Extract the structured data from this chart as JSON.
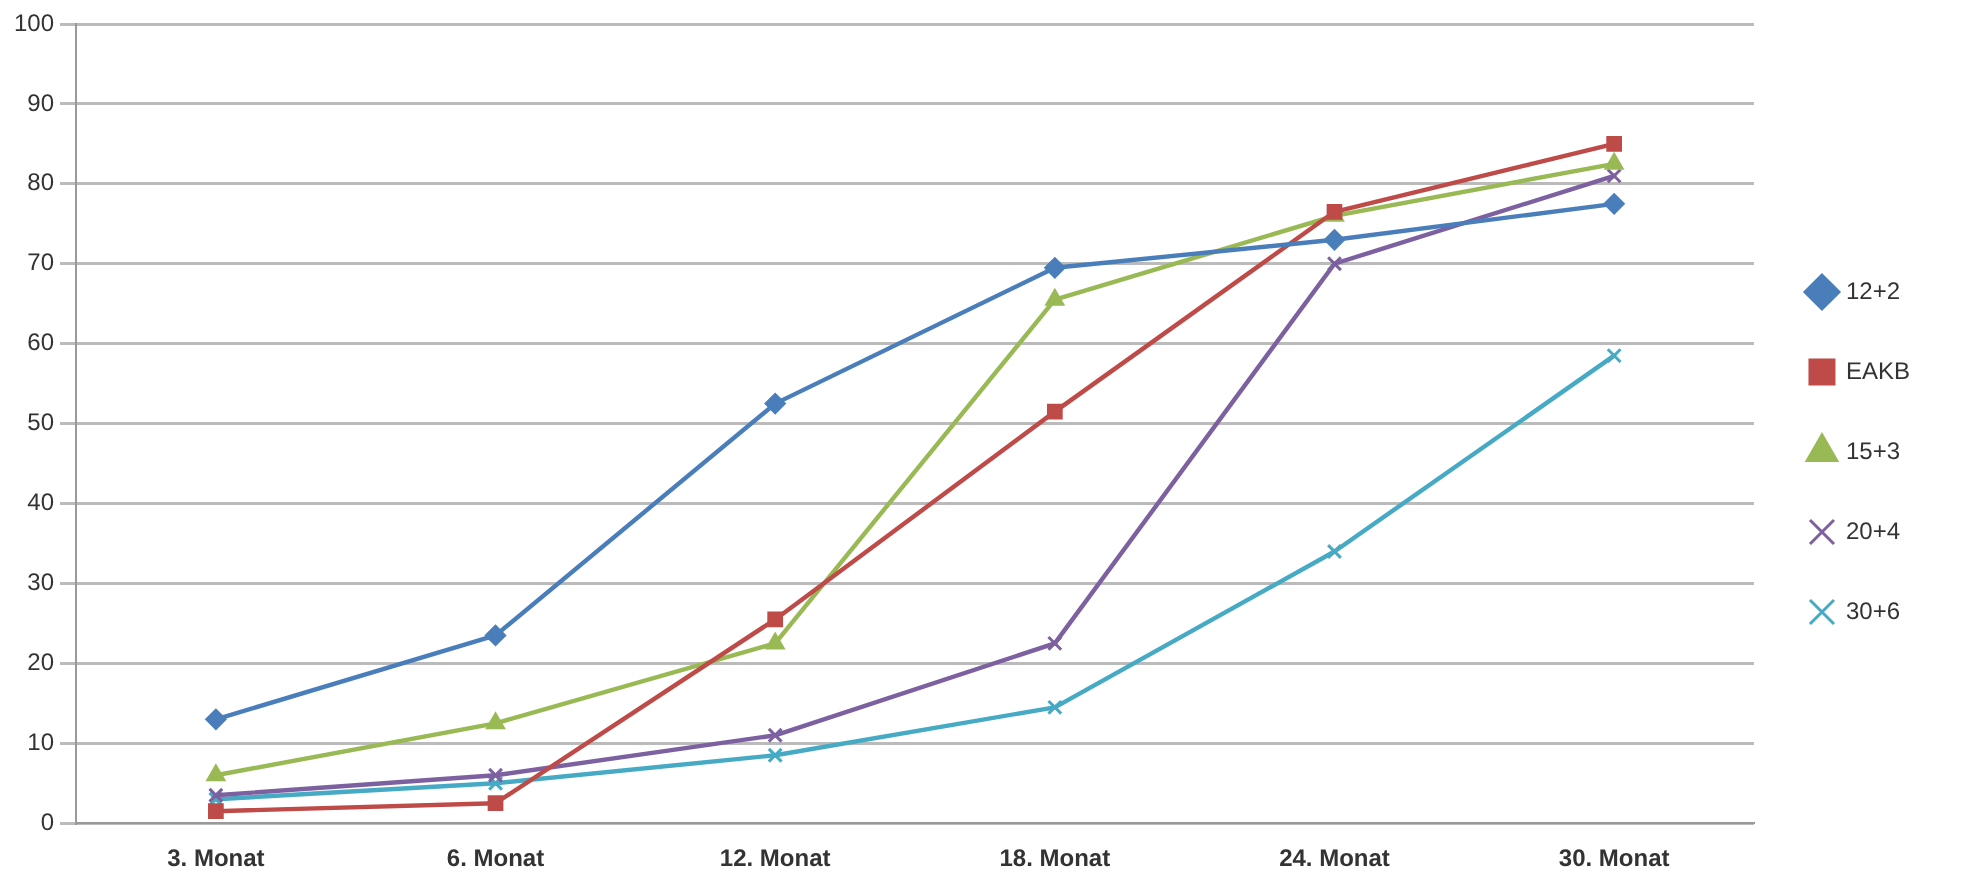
{
  "chart_data": {
    "type": "line",
    "categories": [
      "3. Monat",
      "6. Monat",
      "12. Monat",
      "18. Monat",
      "24. Monat",
      "30. Monat"
    ],
    "series": [
      {
        "name": "12+2",
        "color": "#4a7ebb",
        "marker": "diamond",
        "values": [
          13,
          23.5,
          52.5,
          69.5,
          73,
          77.5
        ]
      },
      {
        "name": "EAKB",
        "color": "#be4b48",
        "marker": "square",
        "values": [
          1.5,
          2.5,
          25.5,
          51.5,
          76.5,
          85
        ]
      },
      {
        "name": "15+3",
        "color": "#98b954",
        "marker": "triangle",
        "values": [
          6,
          12.5,
          22.5,
          65.5,
          76,
          82.5
        ]
      },
      {
        "name": "20+4",
        "color": "#7d60a0",
        "marker": "cross",
        "values": [
          3.5,
          6,
          11,
          22.5,
          70,
          81
        ]
      },
      {
        "name": "30+6",
        "color": "#46aac5",
        "marker": "cross",
        "values": [
          3,
          5,
          8.5,
          14.5,
          34,
          58.5
        ]
      }
    ],
    "ylim": [
      0,
      100
    ],
    "yticks": [
      0,
      10,
      20,
      30,
      40,
      50,
      60,
      70,
      80,
      90,
      100
    ],
    "grid": "y",
    "legend": "right",
    "line_style": "solid"
  }
}
